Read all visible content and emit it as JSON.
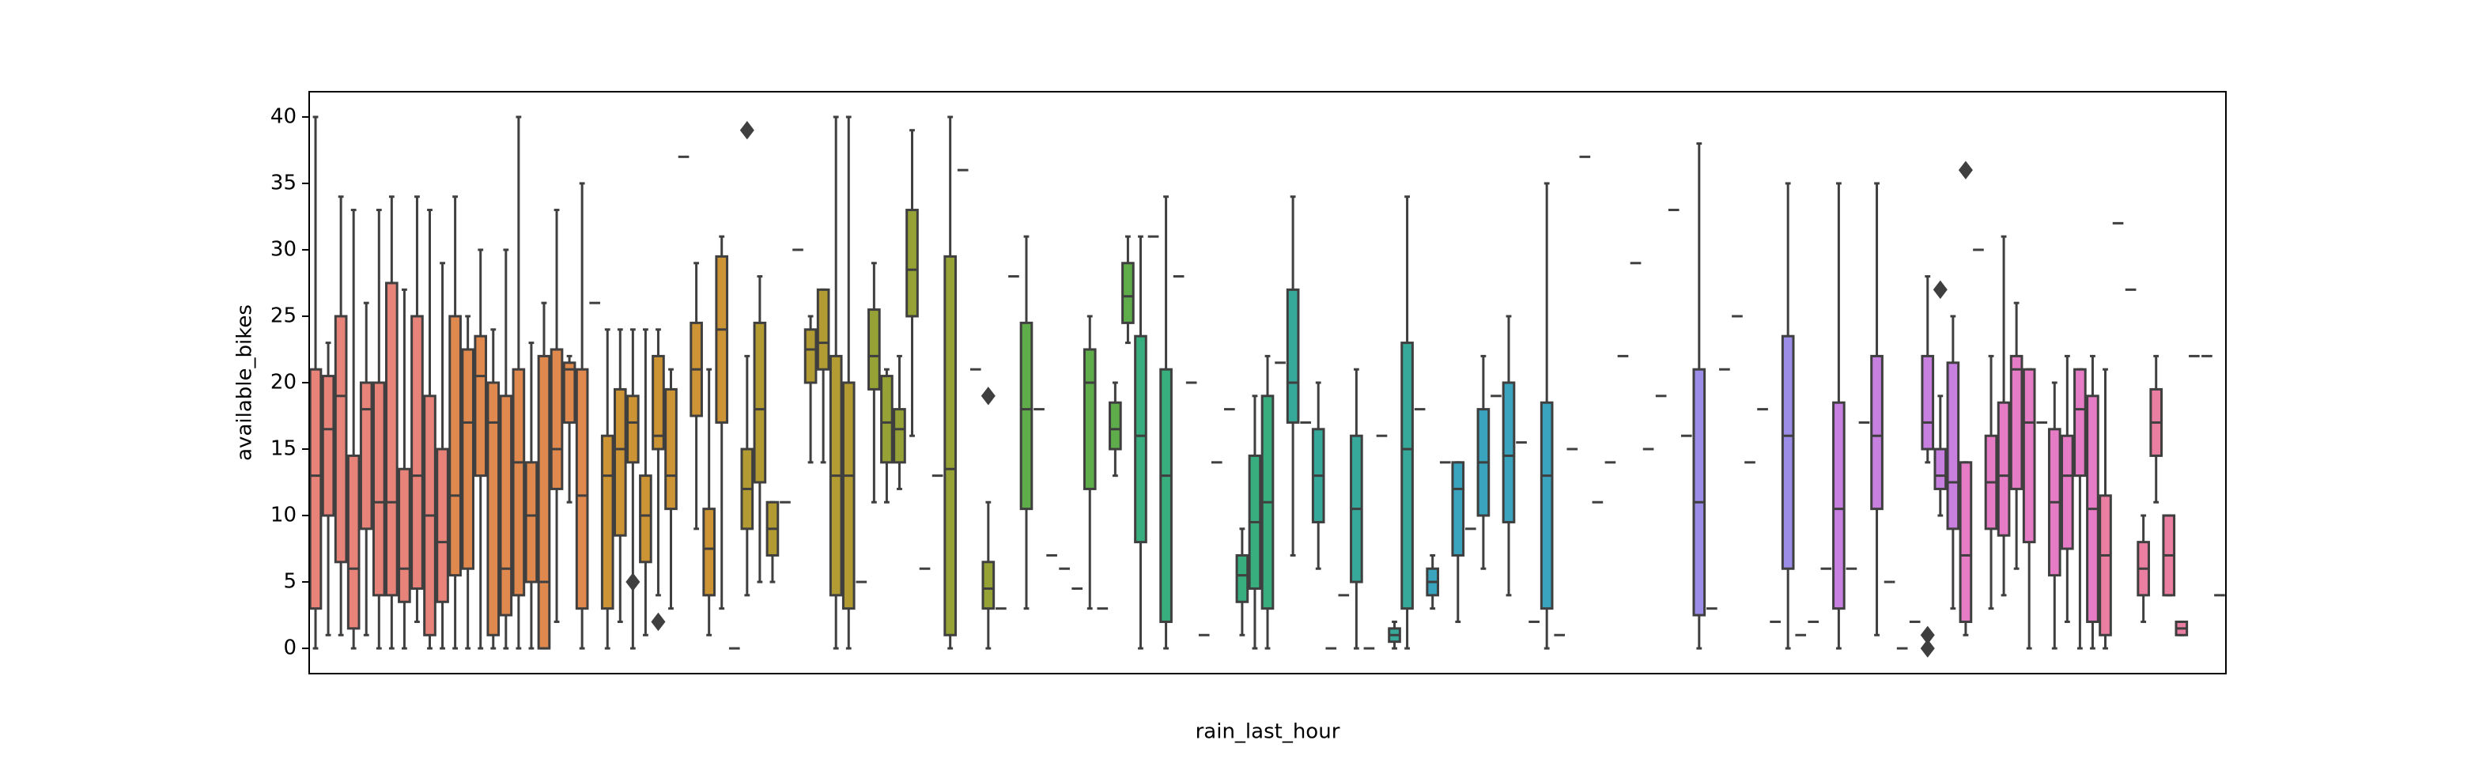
{
  "chart_data": {
    "type": "box",
    "x_label": "rain_last_hour",
    "y_label": "available_bikes",
    "ylim": [
      -1.9,
      41.9
    ],
    "yticks": [
      0,
      5,
      10,
      15,
      20,
      25,
      30,
      35,
      40
    ],
    "palette": [
      "#e8837a",
      "#e0894f",
      "#cc9434",
      "#b39b34",
      "#96a236",
      "#5ead4a",
      "#38ad7d",
      "#36a99b",
      "#3aa3bd",
      "#5c9ae0",
      "#9c8de8",
      "#c77fe0",
      "#e67cc5",
      "#ea7fa2"
    ],
    "stats": [
      [
        0,
        3,
        13,
        21,
        40
      ],
      [
        1,
        10,
        16.5,
        20.5,
        23
      ],
      [
        1,
        6.5,
        19,
        25,
        34
      ],
      [
        0,
        1.5,
        6,
        14.5,
        33
      ],
      [
        1,
        9,
        18,
        20,
        26
      ],
      [
        0,
        4,
        11,
        20,
        33
      ],
      [
        0,
        4,
        11,
        27.5,
        34
      ],
      [
        0,
        3.5,
        6,
        13.5,
        27
      ],
      [
        2,
        4.5,
        13,
        25,
        34
      ],
      [
        0,
        1,
        10,
        19,
        33
      ],
      [
        0,
        3.5,
        8,
        15,
        29
      ],
      [
        0,
        5.5,
        11.5,
        25,
        34
      ],
      [
        0,
        6,
        17,
        22.5,
        25
      ],
      [
        0,
        13,
        20.5,
        23.5,
        30
      ],
      [
        0,
        1,
        17,
        20,
        24
      ],
      [
        0,
        2.5,
        6,
        19,
        30
      ],
      [
        0,
        4,
        14,
        21,
        40
      ],
      [
        0,
        5,
        10,
        14,
        23
      ],
      [
        0,
        0,
        5,
        22,
        26
      ],
      [
        2,
        12,
        15,
        22.5,
        33
      ],
      [
        11,
        17,
        21,
        21.5,
        22
      ],
      [
        0,
        3,
        11.5,
        21,
        35
      ],
      26,
      [
        0,
        3,
        13,
        16,
        24
      ],
      [
        2,
        8.5,
        15,
        19.5,
        24
      ],
      [
        0,
        14,
        17,
        19,
        24,
        [
          5
        ]
      ],
      [
        1,
        6.5,
        10,
        13,
        24
      ],
      [
        4,
        15,
        16,
        22,
        24,
        [
          2
        ]
      ],
      [
        3,
        10.5,
        13,
        19.5,
        21
      ],
      37,
      [
        9,
        17.5,
        21,
        24.5,
        29
      ],
      [
        1,
        4,
        7.5,
        10.5,
        21
      ],
      [
        3,
        17,
        24,
        29.5,
        31
      ],
      0,
      [
        4,
        9,
        12,
        15,
        22,
        [
          39
        ]
      ],
      [
        5,
        12.5,
        18,
        24.5,
        28
      ],
      [
        5,
        7,
        9,
        11,
        11
      ],
      11,
      30,
      [
        14,
        20,
        22.5,
        24,
        25
      ],
      [
        14,
        21,
        23,
        27,
        27
      ],
      [
        0,
        4,
        13,
        22,
        40
      ],
      [
        0,
        3,
        13,
        20,
        40
      ],
      5,
      [
        11,
        19.5,
        22,
        25.5,
        29
      ],
      [
        11,
        14,
        17,
        20.5,
        21
      ],
      [
        12,
        14,
        16.5,
        18,
        22
      ],
      [
        16,
        25,
        28.5,
        33,
        39
      ],
      6,
      13,
      [
        0,
        1,
        13.5,
        29.5,
        40
      ],
      36,
      21,
      [
        0,
        3,
        4.5,
        6.5,
        11,
        [
          19
        ]
      ],
      3,
      28,
      [
        3,
        10.5,
        18,
        24.5,
        31
      ],
      18,
      7,
      6,
      4.5,
      [
        3,
        12,
        20,
        22.5,
        25
      ],
      3,
      [
        13,
        15,
        16.5,
        18.5,
        20
      ],
      [
        23,
        24.5,
        26.5,
        29,
        31
      ],
      [
        0,
        8,
        16,
        23.5,
        31
      ],
      31,
      [
        0,
        2,
        13,
        21,
        34
      ],
      28,
      20,
      1,
      14,
      18,
      [
        1,
        3.5,
        5.5,
        7,
        9
      ],
      [
        0,
        4.5,
        9.5,
        14.5,
        19
      ],
      [
        0,
        3,
        11,
        19,
        22
      ],
      21.5,
      [
        7,
        17,
        20,
        27,
        34
      ],
      17,
      [
        6,
        9.5,
        13,
        16.5,
        20
      ],
      0,
      4,
      [
        0,
        5,
        10.5,
        16,
        21
      ],
      0,
      16,
      [
        0,
        0.5,
        1,
        1.5,
        2
      ],
      [
        0,
        3,
        15,
        23,
        34
      ],
      18,
      [
        3,
        4,
        5,
        6,
        7
      ],
      14,
      [
        2,
        7,
        12,
        14,
        14
      ],
      9,
      [
        6,
        10,
        14,
        18,
        22
      ],
      19,
      [
        4,
        9.5,
        14.5,
        20,
        25
      ],
      15.5,
      2,
      [
        0,
        3,
        13,
        18.5,
        35
      ],
      1,
      15,
      37,
      11,
      14,
      22,
      29,
      15,
      19,
      33,
      16,
      [
        0,
        2.5,
        11,
        21,
        38
      ],
      3,
      21,
      25,
      14,
      18,
      2,
      [
        0,
        6,
        16,
        23.5,
        35
      ],
      1,
      2,
      6,
      [
        0,
        3,
        10.5,
        18.5,
        35
      ],
      6,
      17,
      [
        1,
        10.5,
        16,
        22,
        35
      ],
      5,
      0,
      2,
      [
        14,
        15,
        17,
        22,
        28,
        [
          0,
          1
        ]
      ],
      [
        10,
        12,
        13,
        15,
        19,
        [
          27
        ]
      ],
      [
        3,
        9,
        12.5,
        21.5,
        25
      ],
      [
        1,
        2,
        7,
        14,
        14,
        [
          36
        ]
      ],
      30,
      [
        3,
        9,
        12.5,
        16,
        22
      ],
      [
        4,
        8.5,
        13,
        18.5,
        31
      ],
      [
        6,
        12,
        21,
        22,
        26
      ],
      [
        0,
        8,
        17,
        21,
        21
      ],
      17,
      [
        0,
        5.5,
        11,
        16.5,
        20
      ],
      [
        2,
        7.5,
        13,
        16,
        22
      ],
      [
        0,
        13,
        18,
        21,
        21
      ],
      [
        0,
        2,
        10.5,
        19,
        22
      ],
      [
        0,
        1,
        7,
        11.5,
        21
      ],
      32,
      27,
      [
        2,
        4,
        6,
        8,
        10
      ],
      [
        11,
        14.5,
        17,
        19.5,
        22
      ],
      [
        4,
        4,
        7,
        10,
        10
      ],
      [
        1,
        1,
        1.5,
        2,
        2
      ],
      22,
      22,
      4
    ]
  }
}
